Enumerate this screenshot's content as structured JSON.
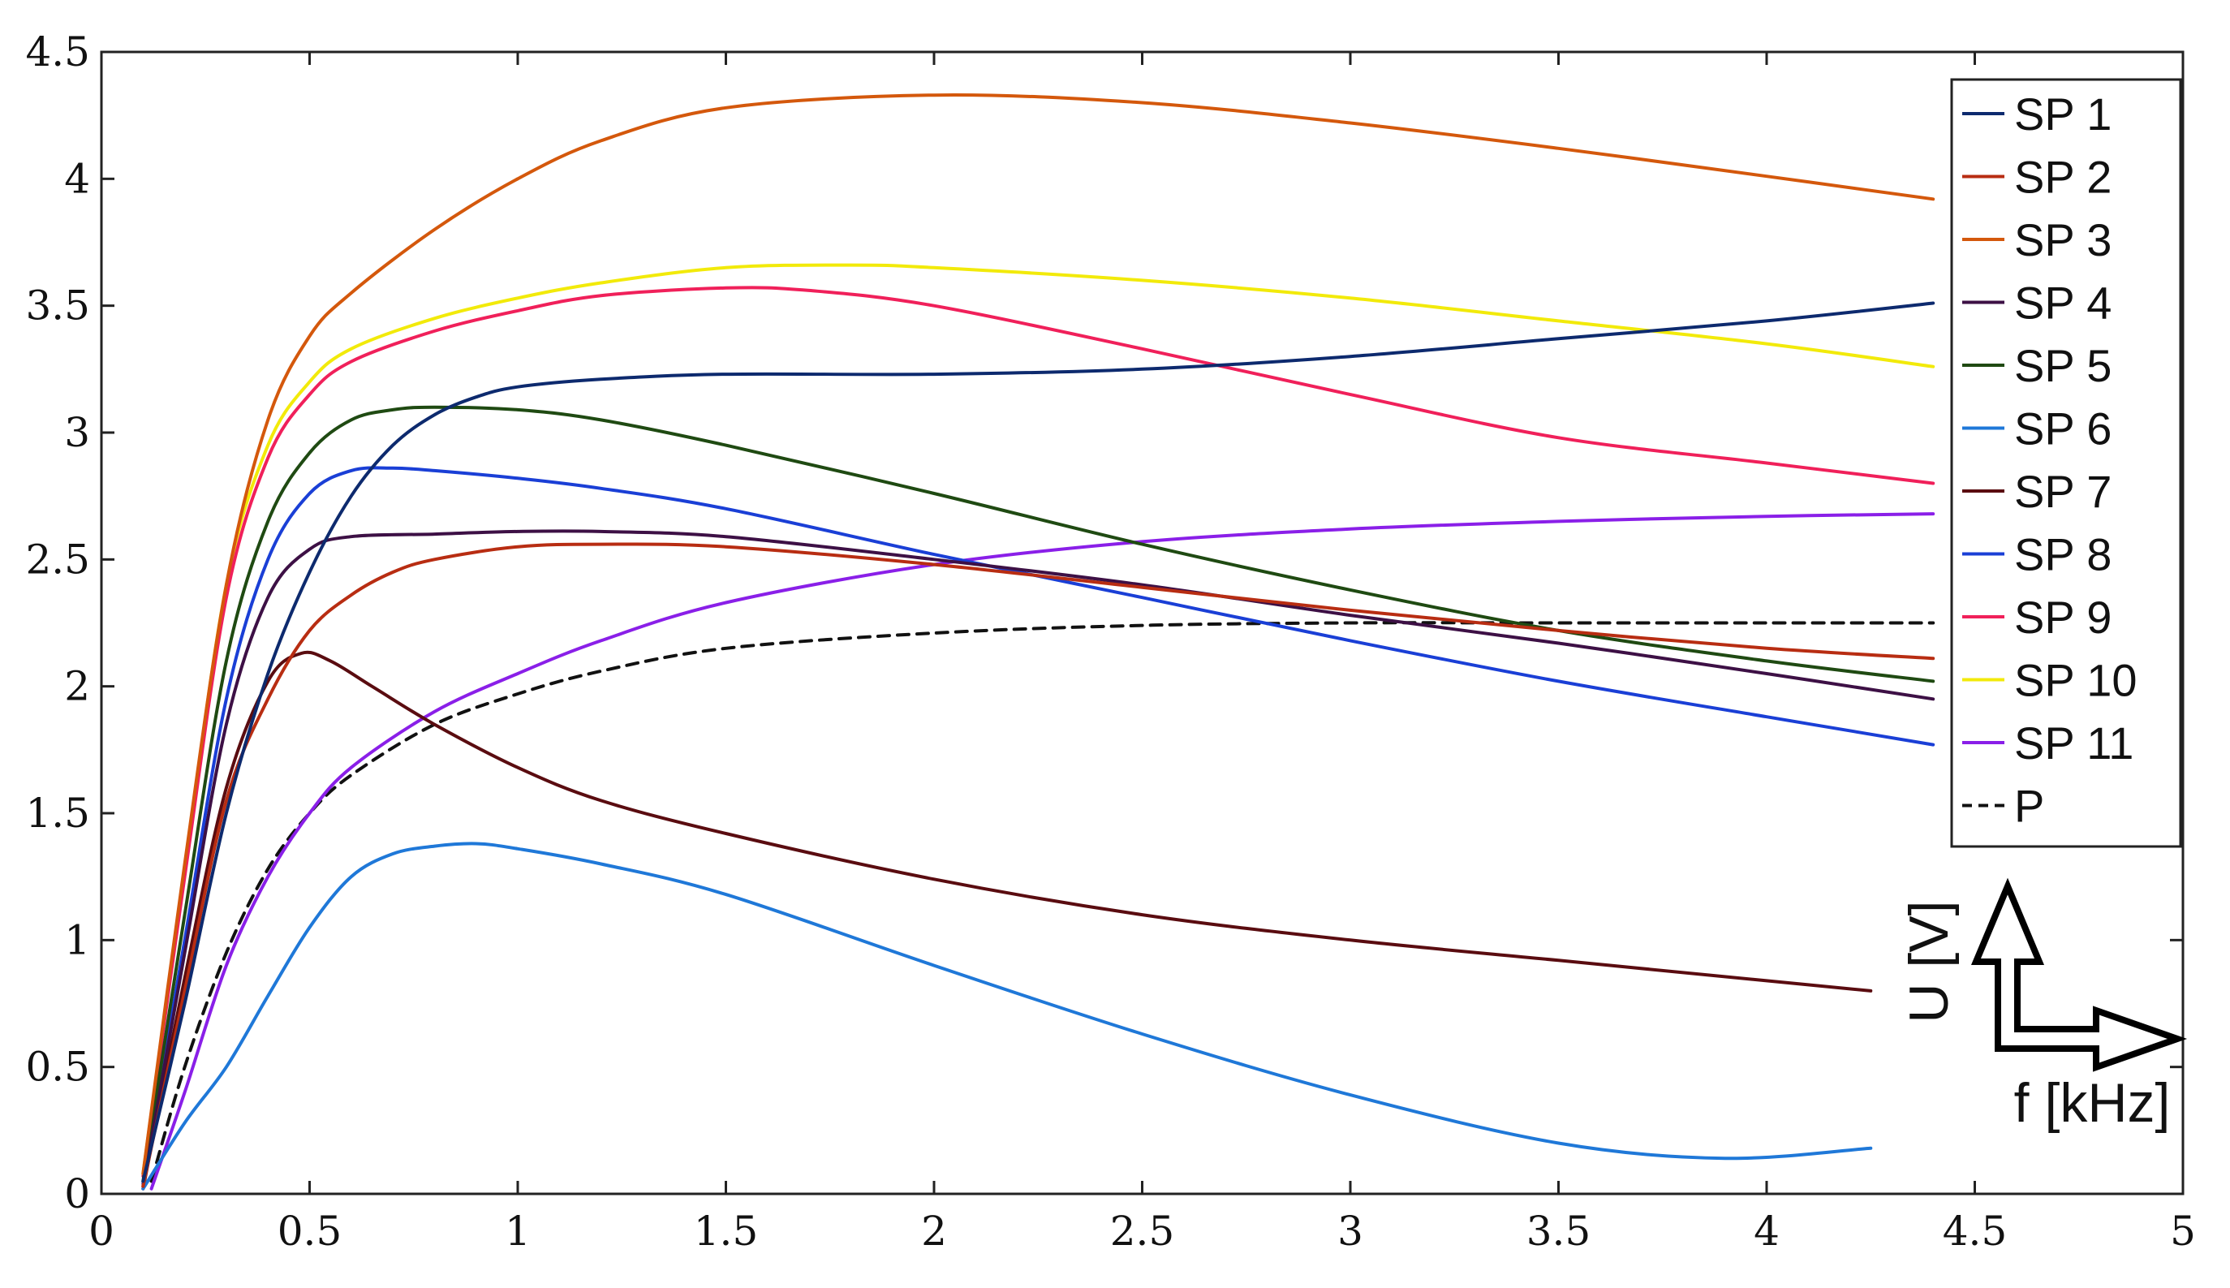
{
  "chart_data": {
    "type": "line",
    "title": "",
    "xlabel": "f [kHz]",
    "ylabel": "U [V]",
    "xlim": [
      0,
      5
    ],
    "ylim": [
      0,
      4.5
    ],
    "xticks": [
      "0",
      "0.5",
      "1",
      "1.5",
      "2",
      "2.5",
      "3",
      "3.5",
      "4",
      "4.5",
      "5"
    ],
    "yticks": [
      "0",
      "0.5",
      "1",
      "1.5",
      "2",
      "2.5",
      "3",
      "3.5",
      "4",
      "4.5"
    ],
    "grid": false,
    "legend_position": "top-right",
    "series": [
      {
        "name": "SP 1",
        "color": "#0d2a6e",
        "dash": false,
        "x": [
          0.1,
          0.2,
          0.3,
          0.4,
          0.5,
          0.6,
          0.7,
          0.8,
          0.9,
          1.0,
          1.2,
          1.5,
          2.0,
          2.5,
          3.0,
          3.5,
          4.0,
          4.4
        ],
        "y": [
          0.05,
          0.75,
          1.5,
          2.05,
          2.45,
          2.75,
          2.95,
          3.07,
          3.14,
          3.18,
          3.21,
          3.23,
          3.23,
          3.25,
          3.3,
          3.37,
          3.44,
          3.51
        ]
      },
      {
        "name": "SP 2",
        "color": "#b82d12",
        "dash": false,
        "x": [
          0.1,
          0.2,
          0.3,
          0.4,
          0.5,
          0.6,
          0.7,
          0.8,
          1.0,
          1.2,
          1.5,
          2.0,
          2.5,
          3.0,
          3.5,
          4.0,
          4.4
        ],
        "y": [
          0.03,
          0.8,
          1.55,
          1.95,
          2.22,
          2.36,
          2.45,
          2.5,
          2.55,
          2.56,
          2.55,
          2.48,
          2.39,
          2.3,
          2.22,
          2.15,
          2.11
        ]
      },
      {
        "name": "SP 3",
        "color": "#d4580c",
        "dash": false,
        "x": [
          0.1,
          0.2,
          0.3,
          0.4,
          0.5,
          0.6,
          0.8,
          1.0,
          1.2,
          1.5,
          2.0,
          2.5,
          3.0,
          3.5,
          4.0,
          4.4
        ],
        "y": [
          0.08,
          1.3,
          2.4,
          3.05,
          3.38,
          3.55,
          3.8,
          4.0,
          4.15,
          4.28,
          4.33,
          4.3,
          4.22,
          4.12,
          4.01,
          3.92
        ]
      },
      {
        "name": "SP 4",
        "color": "#3d1045",
        "dash": false,
        "x": [
          0.1,
          0.2,
          0.3,
          0.4,
          0.5,
          0.6,
          0.8,
          1.0,
          1.2,
          1.5,
          2.0,
          2.5,
          3.0,
          3.5,
          4.0,
          4.4
        ],
        "y": [
          0.03,
          0.95,
          1.85,
          2.35,
          2.54,
          2.59,
          2.6,
          2.61,
          2.61,
          2.59,
          2.5,
          2.4,
          2.28,
          2.17,
          2.05,
          1.95
        ]
      },
      {
        "name": "SP 5",
        "color": "#1f4a12",
        "dash": false,
        "x": [
          0.1,
          0.2,
          0.3,
          0.4,
          0.5,
          0.6,
          0.7,
          0.8,
          1.0,
          1.2,
          1.5,
          2.0,
          2.5,
          3.0,
          3.5,
          4.0,
          4.4
        ],
        "y": [
          0.05,
          1.1,
          2.1,
          2.65,
          2.92,
          3.05,
          3.09,
          3.1,
          3.09,
          3.05,
          2.95,
          2.76,
          2.56,
          2.38,
          2.22,
          2.1,
          2.02
        ]
      },
      {
        "name": "SP 6",
        "color": "#1f78d8",
        "dash": false,
        "x": [
          0.1,
          0.2,
          0.3,
          0.4,
          0.5,
          0.6,
          0.7,
          0.8,
          0.9,
          1.0,
          1.2,
          1.5,
          2.0,
          2.5,
          3.0,
          3.5,
          3.9,
          4.25
        ],
        "y": [
          0.02,
          0.28,
          0.5,
          0.78,
          1.05,
          1.25,
          1.34,
          1.37,
          1.38,
          1.36,
          1.3,
          1.18,
          0.9,
          0.63,
          0.39,
          0.2,
          0.14,
          0.18
        ]
      },
      {
        "name": "SP 7",
        "color": "#5a0c10",
        "dash": false,
        "x": [
          0.1,
          0.2,
          0.3,
          0.4,
          0.48,
          0.55,
          0.65,
          0.8,
          1.0,
          1.2,
          1.5,
          2.0,
          2.5,
          3.0,
          3.5,
          4.0,
          4.25
        ],
        "y": [
          0.02,
          0.85,
          1.6,
          2.02,
          2.13,
          2.1,
          2.0,
          1.85,
          1.68,
          1.55,
          1.42,
          1.24,
          1.1,
          1.0,
          0.92,
          0.84,
          0.8
        ]
      },
      {
        "name": "SP 8",
        "color": "#1a3fd6",
        "dash": false,
        "x": [
          0.1,
          0.2,
          0.3,
          0.4,
          0.5,
          0.6,
          0.7,
          0.8,
          1.0,
          1.2,
          1.5,
          2.0,
          2.5,
          3.0,
          3.5,
          4.0,
          4.4
        ],
        "y": [
          0.04,
          1.0,
          1.95,
          2.5,
          2.76,
          2.85,
          2.86,
          2.85,
          2.82,
          2.78,
          2.7,
          2.52,
          2.35,
          2.18,
          2.02,
          1.88,
          1.77
        ]
      },
      {
        "name": "SP 9",
        "color": "#f0205a",
        "dash": false,
        "x": [
          0.1,
          0.2,
          0.3,
          0.4,
          0.5,
          0.6,
          0.8,
          1.0,
          1.2,
          1.5,
          1.7,
          2.0,
          2.5,
          3.0,
          3.5,
          4.0,
          4.4
        ],
        "y": [
          0.07,
          1.25,
          2.35,
          2.9,
          3.15,
          3.28,
          3.4,
          3.48,
          3.54,
          3.57,
          3.56,
          3.5,
          3.33,
          3.15,
          2.98,
          2.88,
          2.8
        ]
      },
      {
        "name": "SP 10",
        "color": "#f2ea0a",
        "dash": false,
        "x": [
          0.1,
          0.2,
          0.3,
          0.4,
          0.5,
          0.6,
          0.8,
          1.0,
          1.2,
          1.5,
          1.8,
          2.0,
          2.5,
          3.0,
          3.5,
          4.0,
          4.4
        ],
        "y": [
          0.08,
          1.28,
          2.4,
          2.95,
          3.2,
          3.33,
          3.45,
          3.53,
          3.59,
          3.65,
          3.66,
          3.65,
          3.6,
          3.53,
          3.44,
          3.35,
          3.26
        ]
      },
      {
        "name": "SP 11",
        "color": "#8a1fe8",
        "dash": false,
        "x": [
          0.12,
          0.2,
          0.3,
          0.4,
          0.5,
          0.6,
          0.8,
          1.0,
          1.2,
          1.5,
          2.0,
          2.5,
          3.0,
          3.5,
          4.0,
          4.4
        ],
        "y": [
          0.02,
          0.4,
          0.9,
          1.25,
          1.5,
          1.68,
          1.9,
          2.05,
          2.18,
          2.33,
          2.48,
          2.57,
          2.62,
          2.65,
          2.67,
          2.68
        ]
      },
      {
        "name": "P",
        "color": "#111111",
        "dash": true,
        "x": [
          0.12,
          0.2,
          0.3,
          0.4,
          0.5,
          0.6,
          0.8,
          1.0,
          1.2,
          1.5,
          2.0,
          2.5,
          3.0,
          3.5,
          4.0,
          4.4
        ],
        "y": [
          0.05,
          0.5,
          0.95,
          1.28,
          1.5,
          1.65,
          1.85,
          1.97,
          2.06,
          2.15,
          2.21,
          2.24,
          2.25,
          2.25,
          2.25,
          2.25
        ]
      }
    ]
  }
}
